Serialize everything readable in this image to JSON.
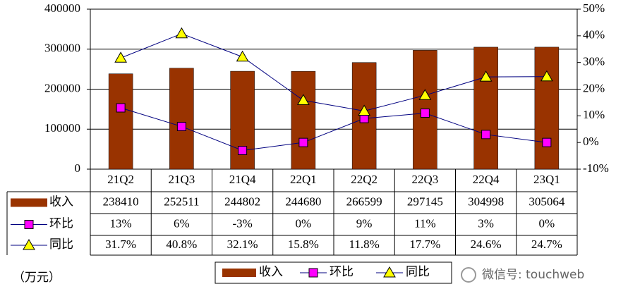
{
  "chart_data": {
    "type": "bar",
    "categories": [
      "21Q2",
      "21Q3",
      "21Q4",
      "22Q1",
      "22Q2",
      "22Q3",
      "22Q4",
      "23Q1"
    ],
    "series": [
      {
        "name": "收入",
        "type": "bar",
        "color": "#993300",
        "values": [
          238410,
          252511,
          244802,
          244680,
          266599,
          297145,
          304998,
          305064
        ]
      },
      {
        "name": "环比",
        "type": "line",
        "axis": "y2",
        "color": "#000080",
        "marker": "square",
        "marker_color": "#ff00ff",
        "values": [
          13,
          6,
          -3,
          0,
          9,
          11,
          3,
          0
        ],
        "value_labels": [
          "13%",
          "6%",
          "-3%",
          "0%",
          "9%",
          "11%",
          "3%",
          "0%"
        ]
      },
      {
        "name": "同比",
        "type": "line",
        "axis": "y2",
        "color": "#000080",
        "marker": "triangle",
        "marker_color": "#ffff00",
        "values": [
          31.7,
          40.8,
          32.1,
          15.8,
          11.8,
          17.7,
          24.6,
          24.7
        ],
        "value_labels": [
          "31.7%",
          "40.8%",
          "32.1%",
          "15.8%",
          "11.8%",
          "17.7%",
          "24.6%",
          "24.7%"
        ]
      }
    ],
    "ylim": [
      0,
      400000
    ],
    "yticks": [
      0,
      100000,
      200000,
      300000,
      400000
    ],
    "y2lim": [
      -10,
      50
    ],
    "y2ticks": [
      {
        "value": -10,
        "label": "-10%"
      },
      {
        "value": 0,
        "label": "0%"
      },
      {
        "value": 10,
        "label": "10%"
      },
      {
        "value": 20,
        "label": "20%"
      },
      {
        "value": 30,
        "label": "30%"
      },
      {
        "value": 40,
        "label": "40%"
      },
      {
        "value": 50,
        "label": "50%"
      }
    ],
    "grid": true,
    "unit_label": "（万元）",
    "watermark": "微信号: touchweb"
  }
}
